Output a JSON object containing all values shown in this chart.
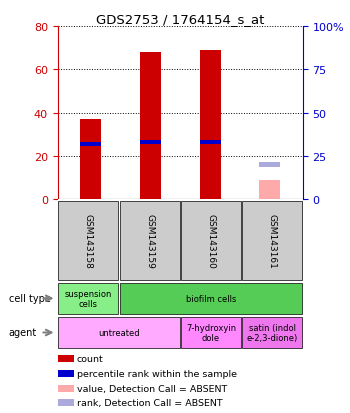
{
  "title": "GDS2753 / 1764154_s_at",
  "samples": [
    "GSM143158",
    "GSM143159",
    "GSM143160",
    "GSM143161"
  ],
  "count_values": [
    37,
    68,
    69,
    null
  ],
  "count_absent": [
    null,
    null,
    null,
    9
  ],
  "percentile_values": [
    32,
    33,
    33,
    null
  ],
  "percentile_absent": [
    null,
    null,
    null,
    20
  ],
  "ylim_left": [
    0,
    80
  ],
  "ylim_right": [
    0,
    100
  ],
  "yticks_left": [
    0,
    20,
    40,
    60,
    80
  ],
  "yticks_right": [
    0,
    25,
    50,
    75,
    100
  ],
  "cell_type_labels": [
    "suspension\ncells",
    "biofilm cells"
  ],
  "cell_type_spans": [
    1,
    3
  ],
  "cell_type_colors": [
    "#88ee88",
    "#55cc55"
  ],
  "agent_labels": [
    "untreated",
    "7-hydroxyin\ndole",
    "satin (indol\ne-2,3-dione)"
  ],
  "agent_spans": [
    2,
    1,
    1
  ],
  "agent_colors": [
    "#ffaaff",
    "#ff88ff",
    "#ee77ee"
  ],
  "bar_width": 0.35,
  "count_color": "#cc0000",
  "count_absent_color": "#ffaaaa",
  "percentile_color": "#0000cc",
  "percentile_absent_color": "#aaaadd",
  "gsm_bg_color": "#cccccc",
  "label_color_left": "#cc0000",
  "label_color_right": "#0000cc",
  "legend_labels": [
    "count",
    "percentile rank within the sample",
    "value, Detection Call = ABSENT",
    "rank, Detection Call = ABSENT"
  ],
  "legend_colors": [
    "#cc0000",
    "#0000cc",
    "#ffaaaa",
    "#aaaadd"
  ]
}
